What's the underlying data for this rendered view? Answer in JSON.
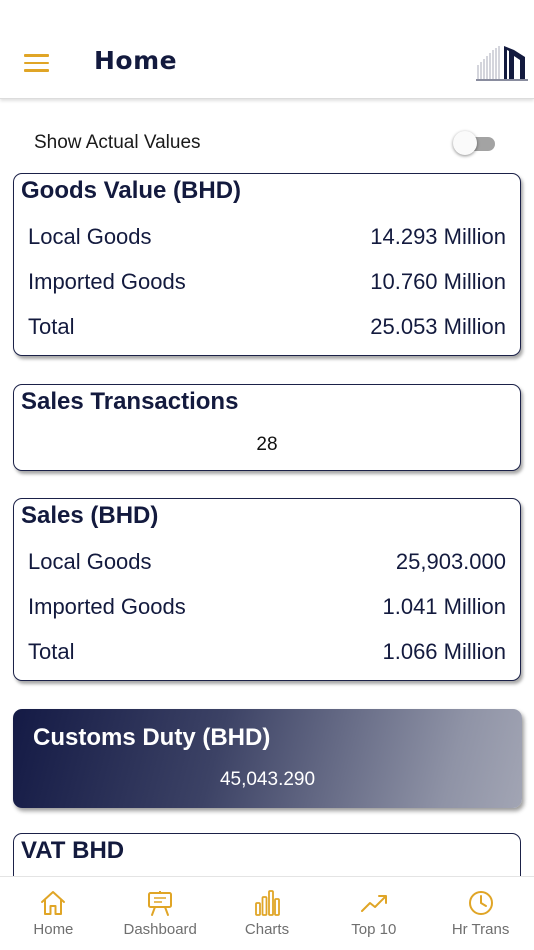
{
  "header": {
    "title": "Home",
    "menu_icon": "hamburger-menu-icon",
    "logo_icon": "building-logo-icon",
    "accent_color": "#e0a526"
  },
  "toggle": {
    "label": "Show Actual Values",
    "state": "off"
  },
  "goods_value": {
    "title": "Goods Value (BHD)",
    "rows": [
      {
        "label": "Local Goods",
        "value": "14.293 Million"
      },
      {
        "label": "Imported Goods",
        "value": "10.760 Million"
      },
      {
        "label": "Total",
        "value": "25.053 Million"
      }
    ]
  },
  "sales_transactions": {
    "title": "Sales Transactions",
    "value": "28"
  },
  "sales": {
    "title": "Sales (BHD)",
    "rows": [
      {
        "label": "Local Goods",
        "value": "25,903.000"
      },
      {
        "label": "Imported Goods",
        "value": "1.041 Million"
      },
      {
        "label": "Total",
        "value": "1.066 Million"
      }
    ]
  },
  "customs_duty": {
    "title": "Customs Duty (BHD)",
    "value": "45,043.290"
  },
  "vat": {
    "title": "VAT BHD"
  },
  "tabs": [
    {
      "label": "Home",
      "icon": "home-icon"
    },
    {
      "label": "Dashboard",
      "icon": "easel-icon"
    },
    {
      "label": "Charts",
      "icon": "bar-chart-icon"
    },
    {
      "label": "Top 10",
      "icon": "trending-up-icon"
    },
    {
      "label": "Hr Trans",
      "icon": "clock-icon"
    }
  ]
}
